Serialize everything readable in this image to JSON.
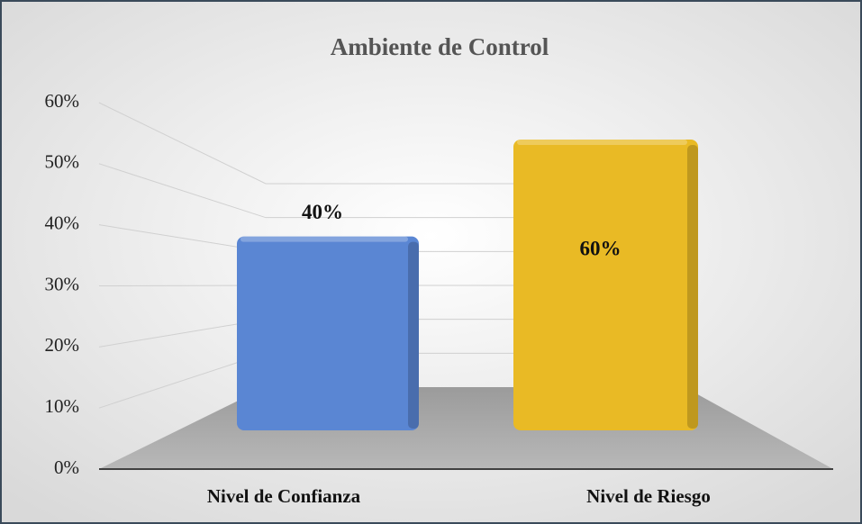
{
  "chart_data": {
    "type": "bar",
    "title": "Ambiente de Control",
    "categories": [
      "Nivel de Confianza",
      "Nivel de Riesgo"
    ],
    "values": [
      40,
      60
    ],
    "value_labels": [
      "40%",
      "60%"
    ],
    "colors": [
      "#5a86d3",
      "#e9ba25"
    ],
    "ylim": [
      0,
      60
    ],
    "yticks": [
      {
        "value": 0,
        "label": "0%"
      },
      {
        "value": 10,
        "label": "10%"
      },
      {
        "value": 20,
        "label": "20%"
      },
      {
        "value": 30,
        "label": "30%"
      },
      {
        "value": 40,
        "label": "40%"
      },
      {
        "value": 50,
        "label": "50%"
      },
      {
        "value": 60,
        "label": "60%"
      }
    ],
    "grid": true
  }
}
